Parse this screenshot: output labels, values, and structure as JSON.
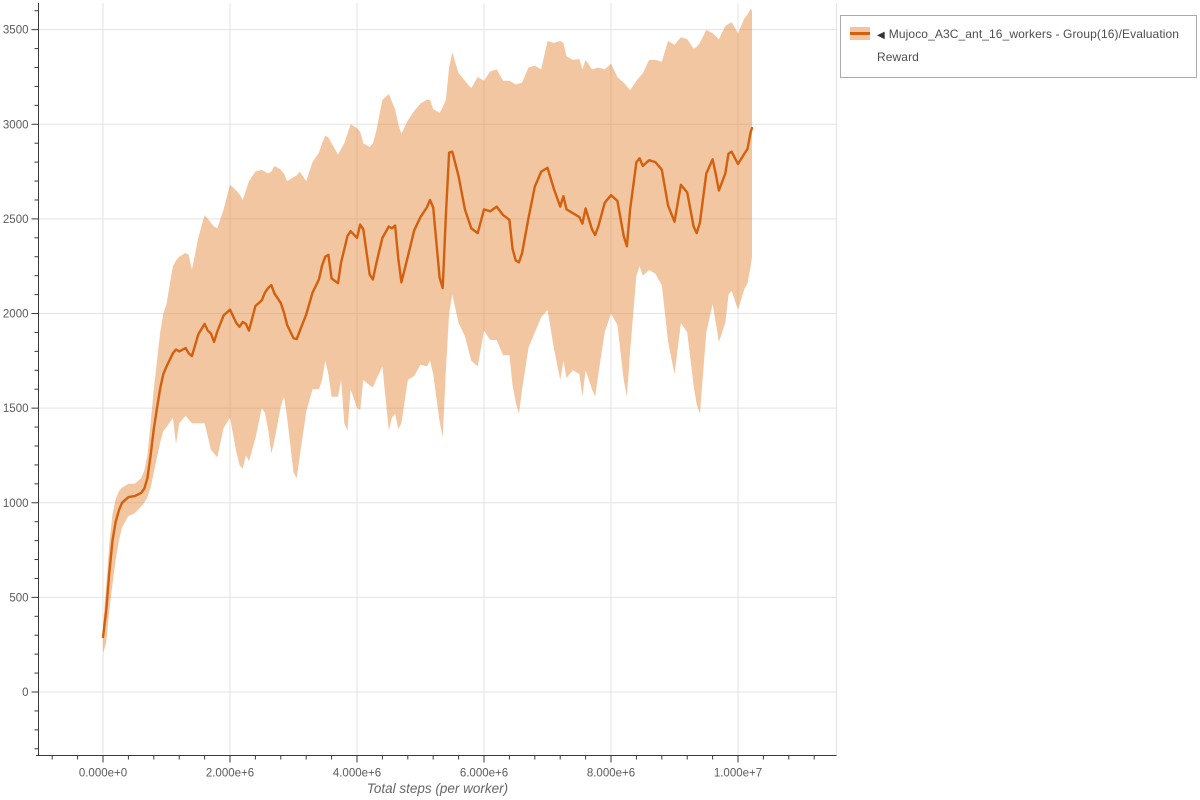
{
  "page": {
    "background": "#ffffff"
  },
  "legend": {
    "marker": "◀",
    "label": "Mujoco_A3C_ant_16_workers - Group(16)/Evaluation Reward",
    "border_color": "#ababab",
    "text_color": "#4d4d4d"
  },
  "axis_style": {
    "spine_color": "#3a3a3a",
    "grid_color": "#e3e3e3",
    "tick_label_color": "#5a5a5a"
  },
  "chart_data": {
    "type": "line",
    "title": "",
    "xlabel": "Total steps (per worker)",
    "ylabel": "",
    "grid": true,
    "legend_position": "top-right-outside",
    "x_scale": 1000000,
    "xlim_millions": [
      -1.05,
      11.55
    ],
    "ylim": [
      -333,
      3640
    ],
    "x_major_ticks_millions": [
      0,
      2,
      4,
      6,
      8,
      10
    ],
    "x_major_tick_labels": [
      "0.000e+0",
      "2.000e+6",
      "4.000e+6",
      "6.000e+6",
      "8.000e+6",
      "1.000e+7"
    ],
    "x_minor_tick_step_millions": 0.4,
    "x_minor_tick_range_millions": [
      -0.8,
      11.2
    ],
    "y_major_ticks": [
      0,
      500,
      1000,
      1500,
      2000,
      2500,
      3000,
      3500
    ],
    "y_minor_tick_step": 100,
    "y_minor_tick_range": [
      -300,
      3600
    ],
    "series": [
      {
        "name": "Mujoco_A3C_ant_16_workers - Group(16)/Evaluation Reward",
        "line_color": "#d2600e",
        "band_color": "rgba(225,128,45,0.45)",
        "band_color_solid": "#f2c5a0",
        "x_millions": [
          0,
          0.05,
          0.1,
          0.15,
          0.2,
          0.25,
          0.3,
          0.4,
          0.5,
          0.6,
          0.65,
          0.7,
          0.75,
          0.8,
          0.85,
          0.9,
          0.95,
          1.0,
          1.1,
          1.15,
          1.2,
          1.3,
          1.35,
          1.4,
          1.5,
          1.6,
          1.65,
          1.7,
          1.75,
          1.8,
          1.9,
          2.0,
          2.1,
          2.15,
          2.2,
          2.25,
          2.3,
          2.4,
          2.5,
          2.55,
          2.6,
          2.65,
          2.7,
          2.8,
          2.85,
          2.9,
          3.0,
          3.05,
          3.1,
          3.2,
          3.3,
          3.4,
          3.45,
          3.5,
          3.55,
          3.6,
          3.7,
          3.75,
          3.8,
          3.85,
          3.9,
          4.0,
          4.05,
          4.1,
          4.2,
          4.25,
          4.3,
          4.4,
          4.5,
          4.55,
          4.6,
          4.65,
          4.7,
          4.8,
          4.9,
          5.0,
          5.1,
          5.15,
          5.2,
          5.3,
          5.35,
          5.4,
          5.45,
          5.5,
          5.6,
          5.7,
          5.8,
          5.9,
          6.0,
          6.1,
          6.2,
          6.3,
          6.4,
          6.45,
          6.5,
          6.55,
          6.6,
          6.7,
          6.8,
          6.9,
          7.0,
          7.1,
          7.2,
          7.25,
          7.3,
          7.4,
          7.5,
          7.55,
          7.6,
          7.7,
          7.75,
          7.8,
          7.9,
          8.0,
          8.1,
          8.2,
          8.25,
          8.3,
          8.4,
          8.45,
          8.5,
          8.6,
          8.7,
          8.8,
          8.9,
          9.0,
          9.1,
          9.2,
          9.3,
          9.35,
          9.4,
          9.5,
          9.6,
          9.65,
          9.7,
          9.8,
          9.85,
          9.9,
          10.0,
          10.1,
          10.15,
          10.2,
          10.22
        ],
        "mean": [
          290,
          430,
          630,
          800,
          900,
          960,
          1000,
          1030,
          1035,
          1052,
          1075,
          1130,
          1250,
          1390,
          1500,
          1605,
          1680,
          1720,
          1790,
          1810,
          1800,
          1818,
          1790,
          1775,
          1890,
          1945,
          1910,
          1895,
          1850,
          1905,
          1990,
          2020,
          1950,
          1930,
          1955,
          1945,
          1910,
          2040,
          2070,
          2110,
          2135,
          2150,
          2105,
          2055,
          2005,
          1940,
          1870,
          1865,
          1910,
          1995,
          2110,
          2180,
          2255,
          2300,
          2310,
          2185,
          2160,
          2270,
          2340,
          2410,
          2435,
          2400,
          2470,
          2445,
          2205,
          2180,
          2260,
          2400,
          2460,
          2450,
          2465,
          2290,
          2165,
          2300,
          2440,
          2510,
          2560,
          2600,
          2560,
          2190,
          2135,
          2520,
          2850,
          2855,
          2725,
          2550,
          2450,
          2425,
          2550,
          2540,
          2565,
          2520,
          2495,
          2340,
          2280,
          2270,
          2320,
          2505,
          2670,
          2750,
          2770,
          2660,
          2565,
          2620,
          2550,
          2530,
          2510,
          2475,
          2555,
          2445,
          2415,
          2460,
          2585,
          2625,
          2595,
          2410,
          2355,
          2550,
          2800,
          2820,
          2780,
          2810,
          2800,
          2760,
          2570,
          2485,
          2680,
          2640,
          2460,
          2425,
          2480,
          2740,
          2815,
          2735,
          2650,
          2740,
          2845,
          2855,
          2790,
          2845,
          2870,
          2960,
          2980
        ],
        "band_low": [
          205,
          260,
          430,
          570,
          700,
          800,
          870,
          930,
          945,
          980,
          1000,
          1030,
          1080,
          1160,
          1240,
          1320,
          1380,
          1400,
          1450,
          1310,
          1420,
          1460,
          1440,
          1420,
          1420,
          1420,
          1350,
          1280,
          1260,
          1240,
          1395,
          1450,
          1270,
          1200,
          1180,
          1250,
          1220,
          1340,
          1500,
          1475,
          1390,
          1260,
          1330,
          1510,
          1560,
          1450,
          1160,
          1130,
          1250,
          1480,
          1600,
          1600,
          1650,
          1750,
          1680,
          1560,
          1560,
          1650,
          1420,
          1380,
          1600,
          1500,
          1490,
          1650,
          1620,
          1610,
          1650,
          1720,
          1380,
          1450,
          1470,
          1390,
          1420,
          1650,
          1670,
          1730,
          1720,
          1750,
          1680,
          1430,
          1345,
          1700,
          2000,
          2100,
          1950,
          1880,
          1750,
          1720,
          1910,
          1860,
          1860,
          1780,
          1780,
          1620,
          1530,
          1470,
          1600,
          1820,
          1900,
          1980,
          2020,
          1820,
          1650,
          1750,
          1660,
          1700,
          1680,
          1560,
          1700,
          1600,
          1560,
          1680,
          1900,
          2000,
          1940,
          1650,
          1560,
          1800,
          2200,
          2250,
          2200,
          2230,
          2210,
          2150,
          1850,
          1680,
          1950,
          1900,
          1620,
          1520,
          1470,
          1900,
          2050,
          1950,
          1850,
          1950,
          2100,
          2120,
          2020,
          2130,
          2160,
          2250,
          2300
        ],
        "band_high": [
          350,
          560,
          780,
          940,
          1020,
          1060,
          1080,
          1100,
          1100,
          1130,
          1170,
          1250,
          1420,
          1600,
          1750,
          1900,
          2000,
          2050,
          2250,
          2280,
          2300,
          2320,
          2310,
          2230,
          2400,
          2520,
          2500,
          2480,
          2460,
          2450,
          2550,
          2680,
          2650,
          2630,
          2600,
          2650,
          2700,
          2750,
          2760,
          2750,
          2740,
          2750,
          2780,
          2760,
          2740,
          2700,
          2720,
          2730,
          2750,
          2700,
          2800,
          2850,
          2900,
          2940,
          2930,
          2900,
          2840,
          2870,
          2900,
          2950,
          3000,
          2980,
          2960,
          2900,
          2880,
          2900,
          2960,
          3130,
          3160,
          3120,
          3080,
          3000,
          2950,
          3020,
          3070,
          3110,
          3130,
          3130,
          3080,
          3060,
          3090,
          3130,
          3300,
          3380,
          3270,
          3230,
          3190,
          3250,
          3230,
          3280,
          3290,
          3230,
          3230,
          3220,
          3210,
          3215,
          3220,
          3300,
          3310,
          3290,
          3440,
          3430,
          3440,
          3430,
          3360,
          3340,
          3345,
          3290,
          3340,
          3290,
          3295,
          3300,
          3290,
          3320,
          3250,
          3220,
          3200,
          3180,
          3230,
          3250,
          3270,
          3340,
          3340,
          3330,
          3440,
          3420,
          3460,
          3450,
          3400,
          3410,
          3430,
          3500,
          3480,
          3465,
          3450,
          3520,
          3530,
          3540,
          3480,
          3560,
          3580,
          3610,
          3600
        ]
      }
    ]
  }
}
